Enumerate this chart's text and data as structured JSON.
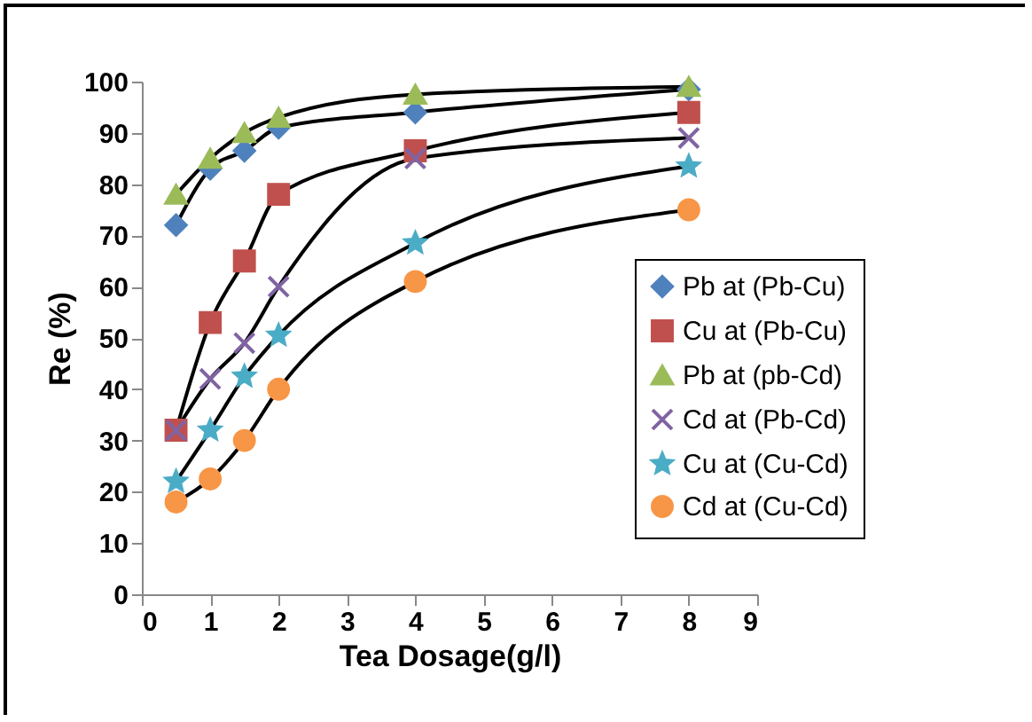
{
  "chart_data": {
    "type": "line",
    "xlabel": "Tea Dosage(g/l)",
    "ylabel": "Re (%)",
    "x": [
      0.5,
      1,
      1.5,
      2,
      4,
      8
    ],
    "xlim": [
      0,
      9
    ],
    "xticks": [
      0,
      1,
      2,
      3,
      4,
      5,
      6,
      7,
      8,
      9
    ],
    "ylim": [
      0,
      100
    ],
    "yticks": [
      0,
      10,
      20,
      30,
      40,
      50,
      60,
      70,
      80,
      90,
      100
    ],
    "grid": false,
    "legend": "right",
    "line_style": "solid",
    "series": [
      {
        "name": "Pb at (Pb-Cu)",
        "color": "#4f81bd",
        "marker": "diamond",
        "values": [
          72,
          83,
          86.5,
          91,
          94,
          98.5
        ]
      },
      {
        "name": "Cu at (Pb-Cu)",
        "color": "#c0504d",
        "marker": "square",
        "values": [
          32,
          53,
          65,
          78,
          86.5,
          94
        ]
      },
      {
        "name": "Pb at (pb-Cd)",
        "color": "#9bbb59",
        "marker": "triangle",
        "values": [
          78,
          85,
          90,
          93,
          97.5,
          99
        ]
      },
      {
        "name": "Cd at (Pb-Cd)",
        "color": "#8064a2",
        "marker": "cross",
        "values": [
          32,
          42,
          49,
          60,
          85,
          89
        ]
      },
      {
        "name": "Cu at (Cu-Cd)",
        "color": "#4bacc6",
        "marker": "star",
        "values": [
          22,
          32,
          42.5,
          50.5,
          68.5,
          83.5
        ]
      },
      {
        "name": "Cd at (Cu-Cd)",
        "color": "#f79646",
        "marker": "circle",
        "values": [
          18,
          22.5,
          30,
          40,
          61,
          75
        ]
      }
    ]
  }
}
